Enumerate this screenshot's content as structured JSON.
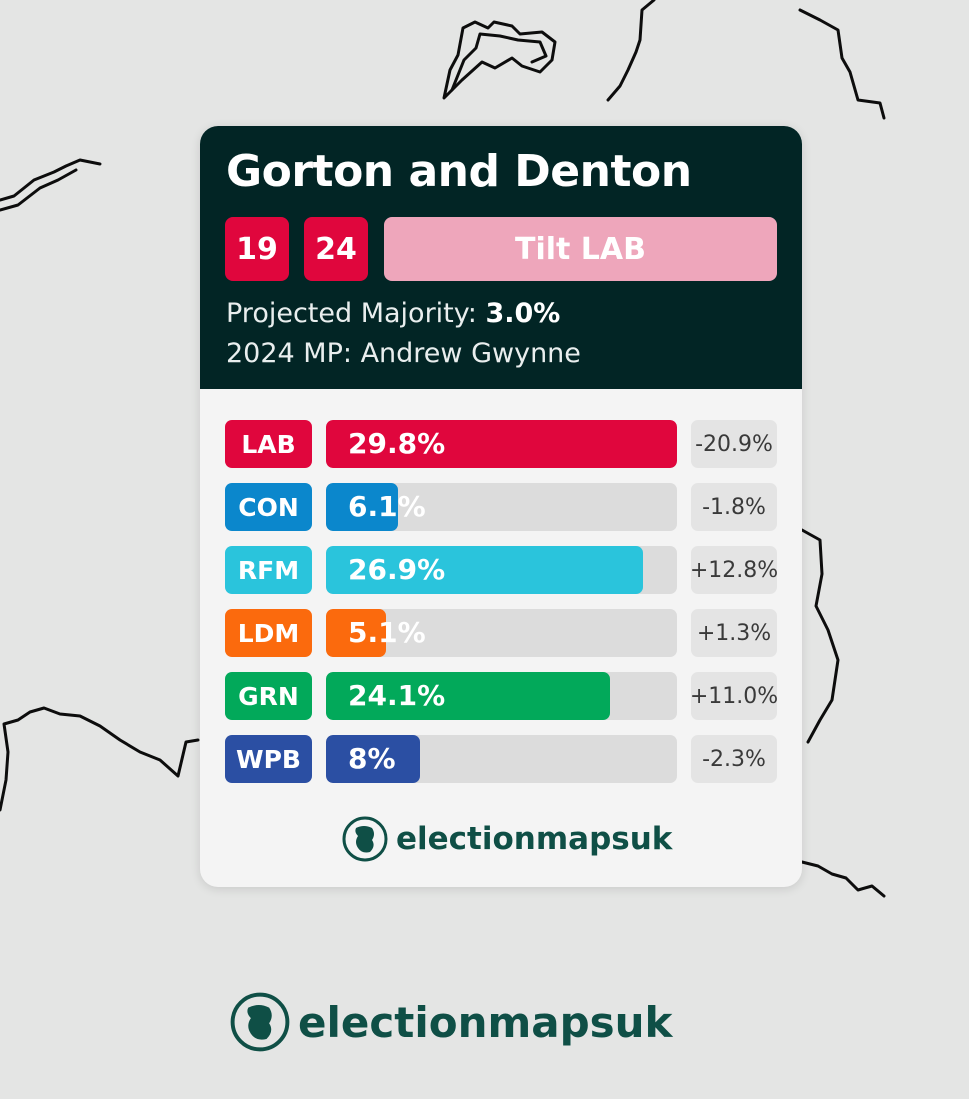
{
  "constituency": {
    "name": "Gorton and Denton",
    "badges": [
      "19",
      "24"
    ],
    "tilt": "Tilt LAB",
    "majority_label": "Projected Majority:",
    "majority_value": "3.0%",
    "mp_label": "2024 MP:",
    "mp_name": "Andrew Gwynne"
  },
  "results": [
    {
      "party": "LAB",
      "share": 29.8,
      "share_label": "29.8%",
      "change": "-20.9%",
      "color": "#e0063d"
    },
    {
      "party": "CON",
      "share": 6.1,
      "share_label": "6.1%",
      "change": "-1.8%",
      "color": "#0b87cc"
    },
    {
      "party": "RFM",
      "share": 26.9,
      "share_label": "26.9%",
      "change": "+12.8%",
      "color": "#2ac4dc"
    },
    {
      "party": "LDM",
      "share": 5.1,
      "share_label": "5.1%",
      "change": "+1.3%",
      "color": "#fb6a0d"
    },
    {
      "party": "GRN",
      "share": 24.1,
      "share_label": "24.1%",
      "change": "+11.0%",
      "color": "#02a95a"
    },
    {
      "party": "WPB",
      "share": 8,
      "share_label": "8%",
      "change": "-2.3%",
      "color": "#2b4fa3"
    }
  ],
  "bar_max_share": 29.8,
  "brand": {
    "card_logo_text": "electionmapsuk",
    "footer_logo_text": "electionmapsuk",
    "color": "#0f4f46"
  },
  "icons": {
    "logo": "globe-icon"
  }
}
